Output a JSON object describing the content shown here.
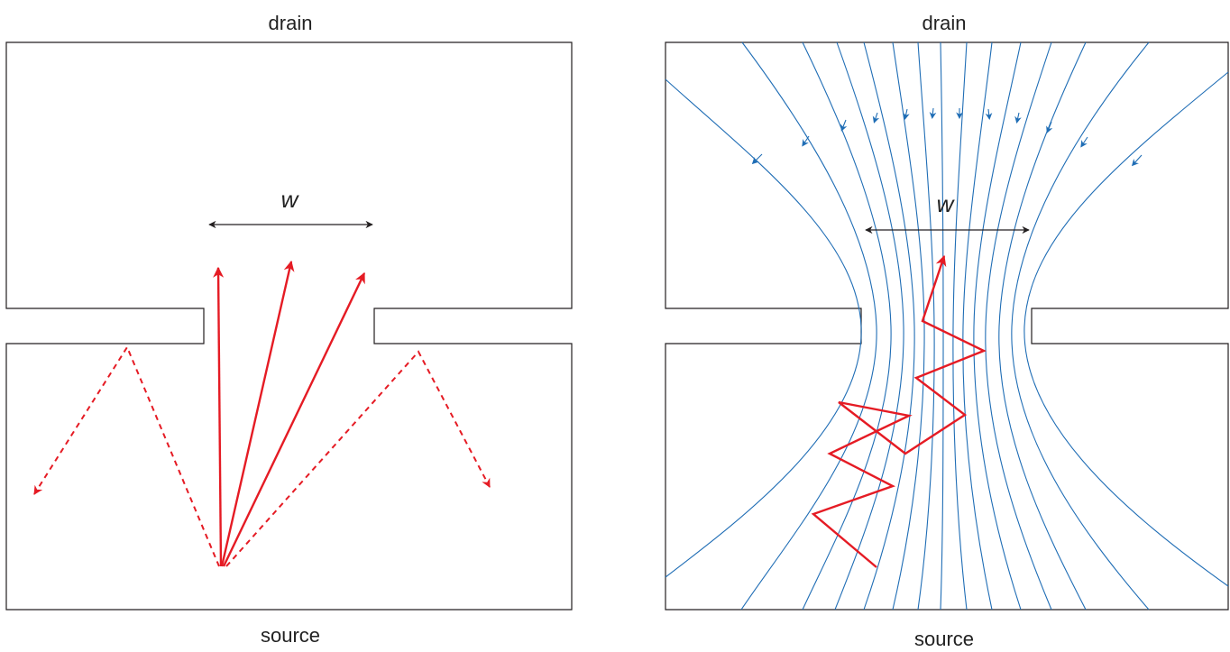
{
  "left_panel": {
    "top_label": "drain",
    "bottom_label": "source",
    "width_label": "w"
  },
  "right_panel": {
    "top_label": "drain",
    "bottom_label": "source",
    "width_label": "w"
  },
  "colors": {
    "outline": "#231f20",
    "trajectory": "#e51b24",
    "streamline": "#1f6db5"
  }
}
